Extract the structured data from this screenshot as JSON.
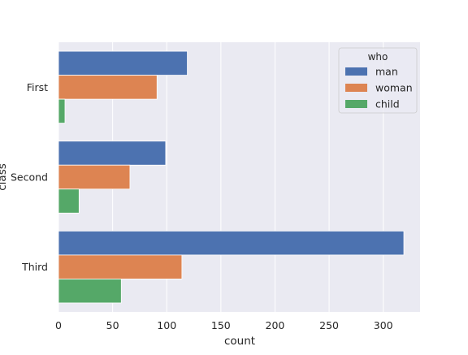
{
  "chart_data": {
    "type": "bar",
    "orientation": "horizontal",
    "categories": [
      "First",
      "Second",
      "Third"
    ],
    "series": [
      {
        "name": "man",
        "values": [
          119,
          99,
          319
        ],
        "color": "#4c72b0"
      },
      {
        "name": "woman",
        "values": [
          91,
          66,
          114
        ],
        "color": "#dd8452"
      },
      {
        "name": "child",
        "values": [
          6,
          19,
          58
        ],
        "color": "#55a868"
      }
    ],
    "xlabel": "count",
    "ylabel": "class",
    "xlim": [
      0,
      334
    ],
    "xticks": [
      0,
      50,
      100,
      150,
      200,
      250,
      300
    ],
    "grid": true,
    "legend": {
      "title": "who",
      "placement": "top-right"
    },
    "colors": {
      "background": "#eaeaf2",
      "grid": "#ffffff"
    }
  }
}
